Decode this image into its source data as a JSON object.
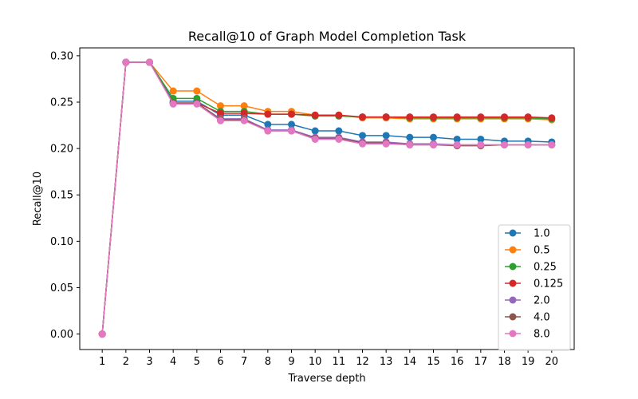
{
  "chart_data": {
    "type": "line",
    "title": "Recall@10 of Graph Model Completion Task",
    "xlabel": "Traverse depth",
    "ylabel": "Recall@10",
    "x": [
      1,
      2,
      3,
      4,
      5,
      6,
      7,
      8,
      9,
      10,
      11,
      12,
      13,
      14,
      15,
      16,
      17,
      18,
      19,
      20
    ],
    "xlim": [
      0.05,
      20.95
    ],
    "ylim": [
      -0.0167,
      0.3085
    ],
    "yticks": [
      0.0,
      0.05,
      0.1,
      0.15,
      0.2,
      0.25,
      0.3
    ],
    "ytick_labels": [
      "0.00",
      "0.05",
      "0.10",
      "0.15",
      "0.20",
      "0.25",
      "0.30"
    ],
    "xtick_labels": [
      "1",
      "2",
      "3",
      "4",
      "5",
      "6",
      "7",
      "8",
      "9",
      "10",
      "11",
      "12",
      "13",
      "14",
      "15",
      "16",
      "17",
      "18",
      "19",
      "20"
    ],
    "grid": false,
    "legend_position": "lower-right",
    "series": [
      {
        "name": "1.0",
        "color": "#1f77b4",
        "values": [
          0.0,
          0.293,
          0.293,
          0.251,
          0.251,
          0.236,
          0.236,
          0.226,
          0.226,
          0.219,
          0.219,
          0.214,
          0.214,
          0.212,
          0.212,
          0.21,
          0.21,
          0.208,
          0.208,
          0.207
        ]
      },
      {
        "name": "0.5",
        "color": "#ff7f0e",
        "values": [
          0.0,
          0.293,
          0.293,
          0.262,
          0.262,
          0.246,
          0.246,
          0.24,
          0.24,
          0.236,
          0.236,
          0.233,
          0.233,
          0.232,
          0.232,
          0.232,
          0.232,
          0.232,
          0.232,
          0.231
        ]
      },
      {
        "name": "0.25",
        "color": "#2ca02c",
        "values": [
          0.0,
          0.293,
          0.293,
          0.254,
          0.254,
          0.24,
          0.24,
          0.237,
          0.237,
          0.235,
          0.235,
          0.234,
          0.234,
          0.233,
          0.233,
          0.233,
          0.233,
          0.233,
          0.233,
          0.232
        ]
      },
      {
        "name": "0.125",
        "color": "#d62728",
        "values": [
          0.0,
          0.293,
          0.293,
          0.249,
          0.249,
          0.238,
          0.238,
          0.237,
          0.237,
          0.236,
          0.236,
          0.234,
          0.234,
          0.234,
          0.234,
          0.234,
          0.234,
          0.234,
          0.234,
          0.233
        ]
      },
      {
        "name": "2.0",
        "color": "#9467bd",
        "values": [
          0.0,
          0.293,
          0.293,
          0.249,
          0.249,
          0.232,
          0.232,
          0.22,
          0.22,
          0.212,
          0.212,
          0.207,
          0.207,
          0.205,
          0.205,
          0.204,
          0.204,
          0.204,
          0.204,
          0.204
        ]
      },
      {
        "name": "4.0",
        "color": "#8c564b",
        "values": [
          0.0,
          0.293,
          0.293,
          0.249,
          0.249,
          0.231,
          0.231,
          0.219,
          0.219,
          0.211,
          0.211,
          0.206,
          0.206,
          0.204,
          0.204,
          0.203,
          0.203,
          0.204,
          0.204,
          0.204
        ]
      },
      {
        "name": "8.0",
        "color": "#e377c2",
        "values": [
          0.0,
          0.293,
          0.293,
          0.248,
          0.248,
          0.23,
          0.23,
          0.219,
          0.219,
          0.21,
          0.21,
          0.205,
          0.205,
          0.204,
          0.204,
          0.204,
          0.204,
          0.204,
          0.204,
          0.204
        ]
      }
    ]
  }
}
